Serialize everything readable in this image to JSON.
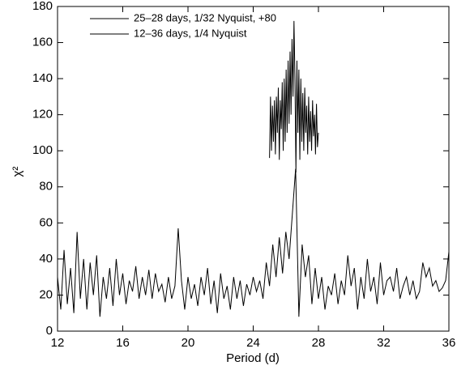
{
  "chart_data": {
    "type": "line",
    "xlabel": "Period (d)",
    "ylabel": "χ²",
    "xlim": [
      12,
      36
    ],
    "xticks": [
      12,
      16,
      20,
      24,
      28,
      32,
      36
    ],
    "ylim": [
      0,
      180
    ],
    "yticks": [
      0,
      20,
      40,
      60,
      80,
      100,
      120,
      140,
      160,
      180
    ],
    "legend": "upper left",
    "series": [
      {
        "name": "25–28 days, 1/32 Nyquist, +80",
        "color": "#000000",
        "x": [
          25.0,
          25.06,
          25.12,
          25.18,
          25.24,
          25.3,
          25.36,
          25.42,
          25.48,
          25.54,
          25.6,
          25.66,
          25.72,
          25.78,
          25.84,
          25.9,
          25.96,
          26.02,
          26.08,
          26.14,
          26.2,
          26.26,
          26.32,
          26.38,
          26.44,
          26.5,
          26.56,
          26.62,
          26.68,
          26.74,
          26.8,
          26.86,
          26.92,
          26.98,
          27.04,
          27.1,
          27.16,
          27.22,
          27.28,
          27.34,
          27.4,
          27.46,
          27.52,
          27.58,
          27.64,
          27.7,
          27.76,
          27.82,
          27.88,
          27.94,
          28.0
        ],
        "values": [
          96,
          130,
          100,
          125,
          105,
          128,
          98,
          130,
          110,
          135,
          95,
          128,
          112,
          138,
          100,
          140,
          105,
          145,
          110,
          150,
          115,
          155,
          120,
          162,
          130,
          172,
          140,
          88,
          150,
          110,
          145,
          95,
          140,
          105,
          132,
          100,
          135,
          110,
          125,
          98,
          130,
          105,
          122,
          100,
          128,
          108,
          120,
          98,
          126,
          102,
          110
        ]
      },
      {
        "name": "12–36 days, 1/4 Nyquist",
        "color": "#000000",
        "x": [
          12.0,
          12.2,
          12.4,
          12.6,
          12.8,
          13.0,
          13.2,
          13.4,
          13.6,
          13.8,
          14.0,
          14.2,
          14.4,
          14.6,
          14.8,
          15.0,
          15.2,
          15.4,
          15.6,
          15.8,
          16.0,
          16.2,
          16.4,
          16.6,
          16.8,
          17.0,
          17.2,
          17.4,
          17.6,
          17.8,
          18.0,
          18.2,
          18.4,
          18.6,
          18.8,
          19.0,
          19.2,
          19.4,
          19.6,
          19.8,
          20.0,
          20.2,
          20.4,
          20.6,
          20.8,
          21.0,
          21.2,
          21.4,
          21.6,
          21.8,
          22.0,
          22.2,
          22.4,
          22.6,
          22.8,
          23.0,
          23.2,
          23.4,
          23.6,
          23.8,
          24.0,
          24.2,
          24.4,
          24.6,
          24.8,
          25.0,
          25.2,
          25.4,
          25.6,
          25.8,
          26.0,
          26.2,
          26.4,
          26.6,
          26.8,
          27.0,
          27.2,
          27.4,
          27.6,
          27.8,
          28.0,
          28.2,
          28.4,
          28.6,
          28.8,
          29.0,
          29.2,
          29.4,
          29.6,
          29.8,
          30.0,
          30.2,
          30.4,
          30.6,
          30.8,
          31.0,
          31.2,
          31.4,
          31.6,
          31.8,
          32.0,
          32.2,
          32.4,
          32.6,
          32.8,
          33.0,
          33.2,
          33.4,
          33.6,
          33.8,
          34.0,
          34.2,
          34.4,
          34.6,
          34.8,
          35.0,
          35.2,
          35.4,
          35.6,
          35.8,
          36.0
        ],
        "values": [
          30,
          12,
          45,
          15,
          35,
          10,
          55,
          18,
          40,
          12,
          38,
          20,
          42,
          8,
          30,
          18,
          35,
          14,
          40,
          20,
          32,
          15,
          28,
          22,
          36,
          18,
          30,
          20,
          34,
          18,
          32,
          22,
          26,
          16,
          30,
          18,
          25,
          57,
          28,
          12,
          30,
          18,
          26,
          14,
          30,
          20,
          35,
          15,
          28,
          10,
          32,
          18,
          25,
          12,
          30,
          18,
          28,
          14,
          26,
          20,
          30,
          22,
          28,
          18,
          38,
          25,
          48,
          30,
          52,
          32,
          55,
          40,
          65,
          90,
          8,
          48,
          30,
          42,
          15,
          35,
          18,
          30,
          12,
          25,
          20,
          32,
          15,
          28,
          20,
          42,
          25,
          35,
          12,
          30,
          18,
          40,
          22,
          30,
          15,
          38,
          20,
          28,
          30,
          22,
          35,
          18,
          25,
          30,
          20,
          28,
          18,
          22,
          38,
          30,
          35,
          25,
          28,
          22,
          24,
          28,
          44
        ]
      }
    ]
  }
}
